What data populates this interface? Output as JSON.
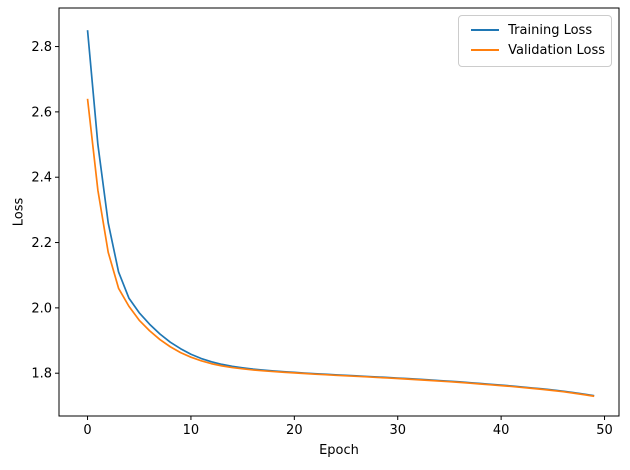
{
  "figure": {
    "background": "#ffffff",
    "axes_color": "#000000",
    "legend_border_color": "#cccccc"
  },
  "chart_data": {
    "type": "line",
    "title": "",
    "xlabel": "Epoch",
    "ylabel": "Loss",
    "grid": false,
    "legend": {
      "position": "upper right"
    },
    "xlim": [
      -2.76,
      51.4
    ],
    "ylim": [
      1.669,
      2.918
    ],
    "xticks": [
      0,
      10,
      20,
      30,
      40,
      50
    ],
    "xtick_labels": [
      "0",
      "10",
      "20",
      "30",
      "40",
      "50"
    ],
    "yticks": [
      1.8,
      2.0,
      2.2,
      2.4,
      2.6,
      2.8
    ],
    "ytick_labels": [
      "1.8",
      "2.0",
      "2.2",
      "2.4",
      "2.6",
      "2.8"
    ],
    "x": [
      0,
      1,
      2,
      3,
      4,
      5,
      6,
      7,
      8,
      9,
      10,
      11,
      12,
      13,
      14,
      15,
      16,
      17,
      18,
      19,
      20,
      21,
      22,
      23,
      24,
      25,
      26,
      27,
      28,
      29,
      30,
      31,
      32,
      33,
      34,
      35,
      36,
      37,
      38,
      39,
      40,
      41,
      42,
      43,
      44,
      45,
      46,
      47,
      48,
      49
    ],
    "series": [
      {
        "name": "Training Loss",
        "color": "#1f77b4",
        "values": [
          2.85,
          2.5,
          2.26,
          2.11,
          2.03,
          1.985,
          1.95,
          1.92,
          1.895,
          1.875,
          1.858,
          1.845,
          1.835,
          1.827,
          1.821,
          1.8165,
          1.8125,
          1.8095,
          1.807,
          1.8045,
          1.8025,
          1.8005,
          1.7985,
          1.797,
          1.795,
          1.7935,
          1.792,
          1.79,
          1.7885,
          1.787,
          1.785,
          1.7835,
          1.7815,
          1.7795,
          1.7775,
          1.7755,
          1.7735,
          1.771,
          1.7685,
          1.766,
          1.7635,
          1.761,
          1.758,
          1.755,
          1.752,
          1.7485,
          1.745,
          1.7405,
          1.736,
          1.731
        ]
      },
      {
        "name": "Validation Loss",
        "color": "#ff7f0e",
        "values": [
          2.64,
          2.36,
          2.17,
          2.06,
          2.005,
          1.962,
          1.93,
          1.903,
          1.881,
          1.863,
          1.849,
          1.838,
          1.829,
          1.8225,
          1.8172,
          1.8135,
          1.81,
          1.8073,
          1.805,
          1.803,
          1.801,
          1.799,
          1.797,
          1.7955,
          1.7935,
          1.792,
          1.7905,
          1.789,
          1.787,
          1.7855,
          1.7838,
          1.782,
          1.78,
          1.778,
          1.776,
          1.774,
          1.772,
          1.7695,
          1.767,
          1.7645,
          1.762,
          1.7595,
          1.7565,
          1.7535,
          1.7505,
          1.747,
          1.7435,
          1.739,
          1.7345,
          1.7295
        ]
      }
    ]
  }
}
